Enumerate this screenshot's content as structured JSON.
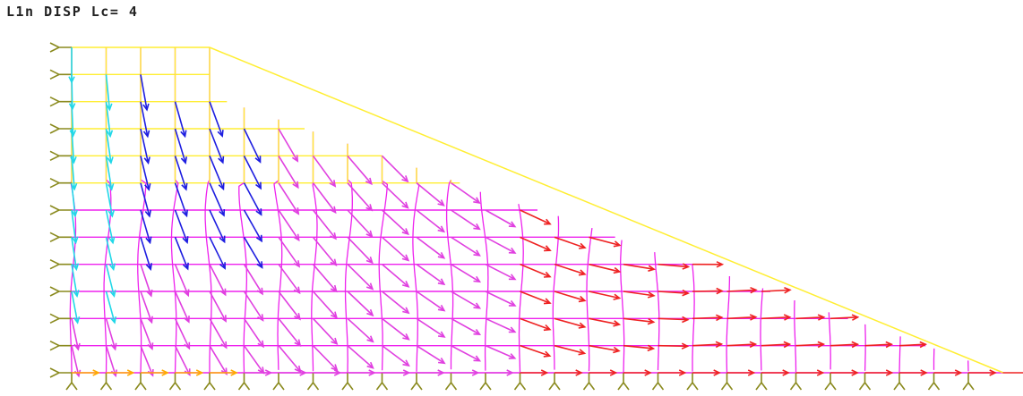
{
  "title": "L1n DISP Lc= 4",
  "legend": {
    "mesh_upper_color": "#ffee33",
    "mesh_lower_color": "#ee22ee",
    "support_color": "#8a8a1e",
    "arrow_color_scale": [
      "#22d8e8",
      "#1e1ee0",
      "#e040e0",
      "#ee2222",
      "#ffaa00"
    ]
  }
}
